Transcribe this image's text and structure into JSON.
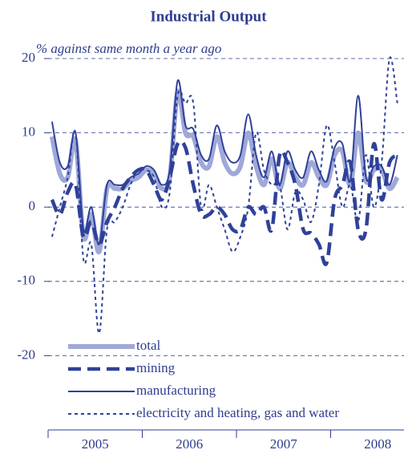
{
  "chart_data": {
    "type": "line",
    "title": "Industrial Output",
    "subtitle": "% against same month a year ago",
    "categories": [
      null,
      null,
      null,
      null,
      null,
      "2005",
      null,
      null,
      null,
      null,
      null,
      null,
      null,
      null,
      null,
      null,
      null,
      "2006",
      null,
      null,
      null,
      null,
      null,
      null,
      null,
      null,
      null,
      null,
      null,
      "2007",
      null,
      null,
      null,
      null,
      null,
      null,
      null,
      null,
      null,
      null,
      null,
      "2008",
      null,
      null,
      null
    ],
    "ylim": [
      -30,
      20
    ],
    "yticks": [
      -20,
      -10,
      0,
      10,
      20
    ],
    "grid": true,
    "legend": "lower left",
    "series": [
      {
        "name": "total",
        "color": "#9fa8d8",
        "values": [
          9.5,
          4.5,
          4,
          9,
          -4,
          -1,
          -6,
          2.5,
          2.5,
          2.5,
          3.5,
          4,
          5,
          4.5,
          2.5,
          4,
          15.5,
          10,
          9.5,
          6,
          5.5,
          9.5,
          6,
          4.5,
          5.5,
          10,
          5.5,
          3,
          6.5,
          2.5,
          6,
          4,
          3,
          6,
          4,
          3,
          7,
          7.5,
          3,
          10,
          3.5,
          5,
          5,
          2.5,
          4
        ]
      },
      {
        "name": "mining",
        "color": "#2f4199",
        "values": [
          1,
          -1,
          2,
          3,
          -4,
          -2,
          -5,
          -2,
          0,
          2.5,
          4,
          5,
          5,
          3,
          1,
          4,
          8.5,
          8,
          3,
          -1,
          -1,
          0,
          -1,
          -3,
          -3,
          0,
          -1,
          0,
          -3,
          7,
          6,
          3,
          -3,
          -3.5,
          -5,
          -7.5,
          1,
          3,
          6,
          -3,
          -3,
          8.5,
          1,
          6,
          7
        ]
      },
      {
        "name": "manufacturing",
        "color": "#2f4199",
        "values": [
          11.5,
          6,
          5.5,
          10,
          -3,
          0,
          -5,
          3,
          3,
          3,
          4,
          4.5,
          5.5,
          5,
          3,
          5,
          17,
          11,
          10.5,
          7,
          6.5,
          11,
          7.5,
          6,
          7,
          12.5,
          7,
          4,
          7.5,
          3,
          7.5,
          5,
          4,
          7.5,
          5,
          3.5,
          8,
          8.5,
          3.5,
          15,
          4,
          5.5,
          5.5,
          3,
          7
        ]
      },
      {
        "name": "electricity and heating, gas and water",
        "color": "#2f4199",
        "values": [
          -4,
          0,
          4,
          10,
          -7,
          -5,
          -17,
          -3,
          -2,
          0,
          3,
          5,
          5,
          4,
          0,
          2,
          15,
          14,
          14,
          0,
          3,
          0,
          -3,
          -6,
          -4,
          0,
          10,
          5,
          3,
          3,
          -3,
          2,
          1,
          -2,
          3,
          11,
          6,
          0,
          3,
          -2,
          7,
          0,
          6,
          20,
          14
        ]
      }
    ]
  }
}
